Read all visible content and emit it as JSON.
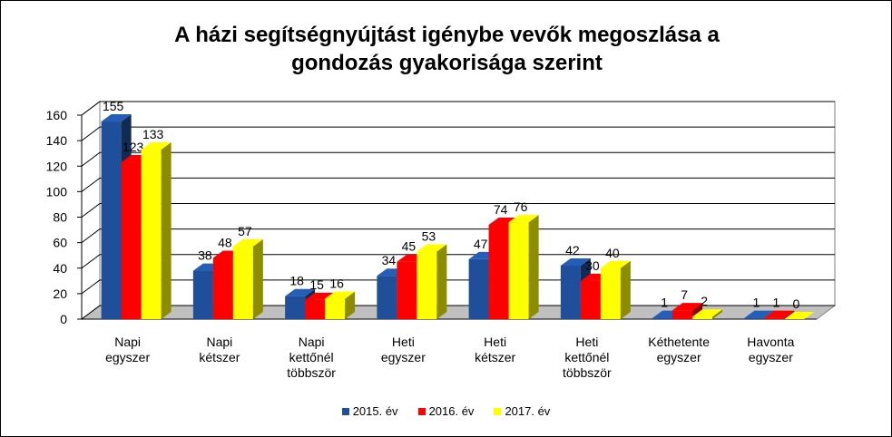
{
  "chart_data": {
    "type": "bar",
    "title_lines": [
      "A házi segítségnyújtást igénybe vevők megoszlása a",
      "gondozás gyakorisága szerint"
    ],
    "categories": [
      [
        "Napi",
        "egyszer"
      ],
      [
        "Napi",
        "kétszer"
      ],
      [
        "Napi",
        "kettőnél",
        "többször"
      ],
      [
        "Heti",
        "egyszer"
      ],
      [
        "Heti",
        "kétszer"
      ],
      [
        "Heti",
        "kettőnél",
        "többször"
      ],
      [
        "Kéthetente",
        "egyszer"
      ],
      [
        "Havonta",
        "egyszer"
      ]
    ],
    "series": [
      {
        "name": "2015. év",
        "color": "#1f4e9a",
        "values": [
          155,
          38,
          18,
          34,
          47,
          42,
          1,
          1
        ]
      },
      {
        "name": "2016. év",
        "color": "#ff0000",
        "values": [
          123,
          48,
          15,
          45,
          74,
          30,
          7,
          1
        ]
      },
      {
        "name": "2017. év",
        "color": "#ffff00",
        "values": [
          133,
          57,
          16,
          53,
          76,
          40,
          2,
          0
        ]
      }
    ],
    "ylim": [
      0,
      160
    ],
    "yticks": [
      0,
      20,
      40,
      60,
      80,
      100,
      120,
      140,
      160
    ],
    "grid": true,
    "legend_position": "bottom"
  }
}
